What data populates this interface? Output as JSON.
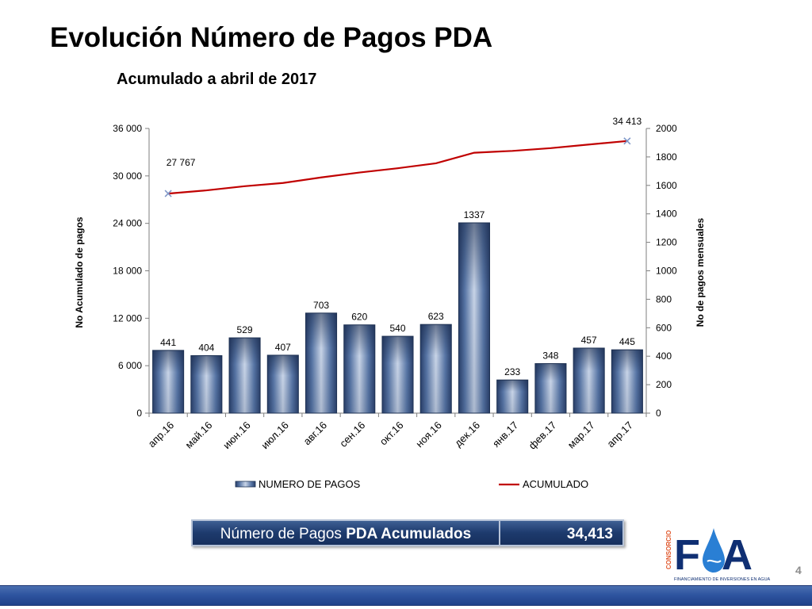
{
  "slide": {
    "title": "Evolución Número de Pagos PDA",
    "subtitle": "Acumulado a abril de 2017",
    "page_number": "4"
  },
  "summary": {
    "label_normal": "Número de Pagos ",
    "label_bold": "PDA Acumulados",
    "value": "34,413"
  },
  "logo": {
    "side_text": "CONSORCIO",
    "name": "FIA",
    "tagline": "FINANCIAMIENTO DE INVERSIONES EN AGUA"
  },
  "colors": {
    "bar": "#2f4a78",
    "bar_light": "#c6d3e6",
    "line": "#c00000",
    "marker": "#7f97c8"
  },
  "chart_data": {
    "type": "bar",
    "categories": [
      "апр.16",
      "май.16",
      "июн.16",
      "июл.16",
      "авг.16",
      "сен.16",
      "окт.16",
      "ноя.16",
      "дек.16",
      "янв.17",
      "фев.17",
      "мар.17",
      "апр.17"
    ],
    "series": [
      {
        "name": "NUMERO DE PAGOS",
        "type": "bar",
        "axis": "right",
        "values": [
          441,
          404,
          529,
          407,
          703,
          620,
          540,
          623,
          1337,
          233,
          348,
          457,
          445
        ],
        "data_labels": [
          "441",
          "404",
          "529",
          "407",
          "703",
          "620",
          "540",
          "623",
          "1337",
          "233",
          "348",
          "457",
          "445"
        ]
      },
      {
        "name": "ACUMULADO",
        "type": "line",
        "axis": "left",
        "values": [
          27767,
          28171,
          28700,
          29107,
          29810,
          30430,
          30970,
          31593,
          32930,
          33163,
          33511,
          33968,
          34413
        ],
        "labeled_points": [
          {
            "index": 0,
            "label": "27 767"
          },
          {
            "index": 12,
            "label": "34 413"
          }
        ]
      }
    ],
    "y_left": {
      "label": "No Acumulado de pagos",
      "lim": [
        0,
        36000
      ],
      "ticks": [
        0,
        6000,
        12000,
        18000,
        24000,
        30000,
        36000
      ],
      "tick_labels": [
        "0",
        "6 000",
        "12 000",
        "18 000",
        "24 000",
        "30 000",
        "36 000"
      ]
    },
    "y_right": {
      "label": "No de pagos mensuales",
      "lim": [
        0,
        2000
      ],
      "ticks": [
        0,
        200,
        400,
        600,
        800,
        1000,
        1200,
        1400,
        1600,
        1800,
        2000
      ],
      "tick_labels": [
        "0",
        "200",
        "400",
        "600",
        "800",
        "1000",
        "1200",
        "1400",
        "1600",
        "1800",
        "2000"
      ]
    },
    "legend": {
      "position": "bottom",
      "entries": [
        "NUMERO DE PAGOS",
        "ACUMULADO"
      ]
    },
    "grid": false
  }
}
